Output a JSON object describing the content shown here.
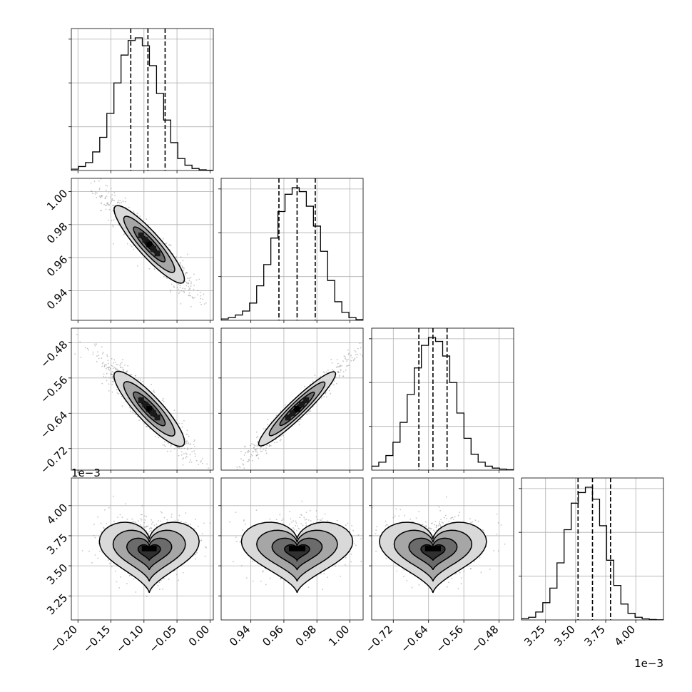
{
  "chart_data": {
    "type": "corner",
    "style": {
      "grid": true,
      "line_color": "#000000",
      "grid_color": "#b0b0b0",
      "point_color": "#7f7f7f"
    },
    "parameters": [
      {
        "ticks": [
          -0.2,
          -0.15,
          -0.1,
          -0.05,
          0.0
        ],
        "tick_labels": [
          "−0.20",
          "−0.15",
          "−0.10",
          "−0.05",
          "0.00"
        ],
        "range": [
          -0.21,
          0.005
        ],
        "offset": ""
      },
      {
        "ticks": [
          0.94,
          0.96,
          0.98,
          1.0
        ],
        "tick_labels": [
          "0.94",
          "0.96",
          "0.98",
          "1.00"
        ],
        "range": [
          0.922,
          1.008
        ],
        "offset": ""
      },
      {
        "ticks": [
          -0.72,
          -0.64,
          -0.56,
          -0.48
        ],
        "tick_labels": [
          "−0.72",
          "−0.64",
          "−0.56",
          "−0.48"
        ],
        "range": [
          -0.769,
          -0.447
        ],
        "offset": ""
      },
      {
        "ticks": [
          3.25,
          3.5,
          3.75,
          4.0
        ],
        "tick_labels": [
          "3.25",
          "3.50",
          "3.75",
          "4.00"
        ],
        "range": [
          3.05,
          4.23
        ],
        "offset": "1e−3"
      }
    ],
    "histograms": [
      {
        "quantiles": [
          -0.12,
          -0.094,
          -0.068
        ],
        "values": [
          0.01,
          0.03,
          0.06,
          0.14,
          0.25,
          0.43,
          0.66,
          0.87,
          0.98,
          1.0,
          0.94,
          0.79,
          0.58,
          0.38,
          0.21,
          0.09,
          0.04,
          0.015,
          0.005,
          0.002
        ]
      },
      {
        "quantiles": [
          0.957,
          0.968,
          0.979
        ],
        "values": [
          0.01,
          0.02,
          0.04,
          0.07,
          0.13,
          0.26,
          0.42,
          0.62,
          0.82,
          0.95,
          1.0,
          0.97,
          0.86,
          0.71,
          0.52,
          0.3,
          0.14,
          0.06,
          0.02,
          0.005
        ]
      },
      {
        "quantiles": [
          -0.662,
          -0.63,
          -0.598
        ],
        "values": [
          0.03,
          0.06,
          0.11,
          0.21,
          0.36,
          0.57,
          0.77,
          0.94,
          1.0,
          0.97,
          0.86,
          0.66,
          0.43,
          0.24,
          0.12,
          0.06,
          0.03,
          0.015,
          0.008,
          0.003
        ]
      },
      {
        "quantiles": [
          3.52,
          3.64,
          3.79
        ],
        "values": [
          0.01,
          0.02,
          0.06,
          0.13,
          0.24,
          0.43,
          0.68,
          0.88,
          0.96,
          1.0,
          0.91,
          0.71,
          0.45,
          0.26,
          0.12,
          0.05,
          0.02,
          0.008,
          0.003,
          0.001
        ]
      }
    ],
    "pairs": [
      {
        "x": 0,
        "y": 1,
        "mean": [
          -0.092,
          0.968
        ],
        "sd": [
          0.028,
          0.0125
        ],
        "corr": -0.94,
        "shape": "ellipse"
      },
      {
        "x": 0,
        "y": 2,
        "mean": [
          -0.092,
          -0.63
        ],
        "sd": [
          0.028,
          0.045
        ],
        "corr": -0.93,
        "shape": "ellipse"
      },
      {
        "x": 1,
        "y": 2,
        "mean": [
          0.968,
          -0.63
        ],
        "sd": [
          0.0125,
          0.045
        ],
        "corr": 0.97,
        "shape": "ellipse"
      },
      {
        "x": 0,
        "y": 3,
        "mean": [
          -0.092,
          3.64
        ],
        "sd": [
          0.028,
          0.13
        ],
        "corr": 0.0,
        "shape": "heart"
      },
      {
        "x": 1,
        "y": 3,
        "mean": [
          0.968,
          3.64
        ],
        "sd": [
          0.0125,
          0.13
        ],
        "corr": 0.0,
        "shape": "heart"
      },
      {
        "x": 2,
        "y": 3,
        "mean": [
          -0.63,
          3.64
        ],
        "sd": [
          0.045,
          0.13
        ],
        "corr": 0.0,
        "shape": "heart"
      }
    ]
  }
}
